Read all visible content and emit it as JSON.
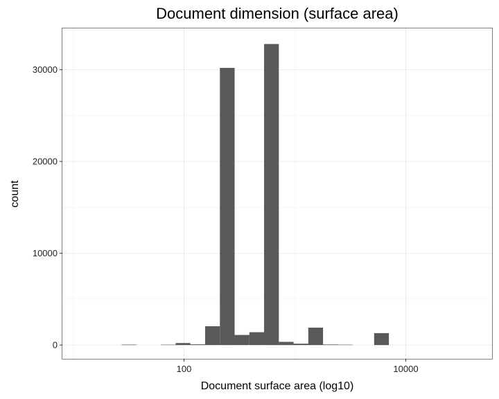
{
  "chart_data": {
    "type": "bar",
    "title": "Document dimension (surface area)",
    "xlabel": "Document surface area (log10)",
    "ylabel": "count",
    "x_scale": "log10",
    "xlim": [
      8,
      60000
    ],
    "ylim": [
      -1500,
      34500
    ],
    "grid": true,
    "x_ticks": [
      {
        "value": 100,
        "label": "100"
      },
      {
        "value": 10000,
        "label": "10000"
      }
    ],
    "y_ticks": [
      {
        "value": 0,
        "label": "0"
      },
      {
        "value": 10000,
        "label": "10000"
      },
      {
        "value": 20000,
        "label": "20000"
      },
      {
        "value": 30000,
        "label": "30000"
      }
    ],
    "bins": [
      {
        "x0": 27.4,
        "x1": 37.4,
        "count": 50
      },
      {
        "x0": 62.0,
        "x1": 84.1,
        "count": 40
      },
      {
        "x0": 84.1,
        "x1": 114.2,
        "count": 220
      },
      {
        "x0": 114.2,
        "x1": 155.1,
        "count": 80
      },
      {
        "x0": 155.1,
        "x1": 210.6,
        "count": 2050
      },
      {
        "x0": 210.6,
        "x1": 286.0,
        "count": 30200
      },
      {
        "x0": 286.0,
        "x1": 388.4,
        "count": 1100
      },
      {
        "x0": 388.4,
        "x1": 527.4,
        "count": 1400
      },
      {
        "x0": 527.4,
        "x1": 716.3,
        "count": 32800
      },
      {
        "x0": 716.3,
        "x1": 972.7,
        "count": 350
      },
      {
        "x0": 972.7,
        "x1": 1320.9,
        "count": 150
      },
      {
        "x0": 1320.9,
        "x1": 1793.8,
        "count": 1900
      },
      {
        "x0": 1793.8,
        "x1": 2436.0,
        "count": 60
      },
      {
        "x0": 2436.0,
        "x1": 3308.1,
        "count": 40
      },
      {
        "x0": 5183.5,
        "x1": 7039.2,
        "count": 1300
      }
    ],
    "colors": {
      "bar": "#595959",
      "panel_border": "#7f7f7f",
      "grid_major": "#ebebeb",
      "grid_minor": "#f5f5f5"
    }
  }
}
